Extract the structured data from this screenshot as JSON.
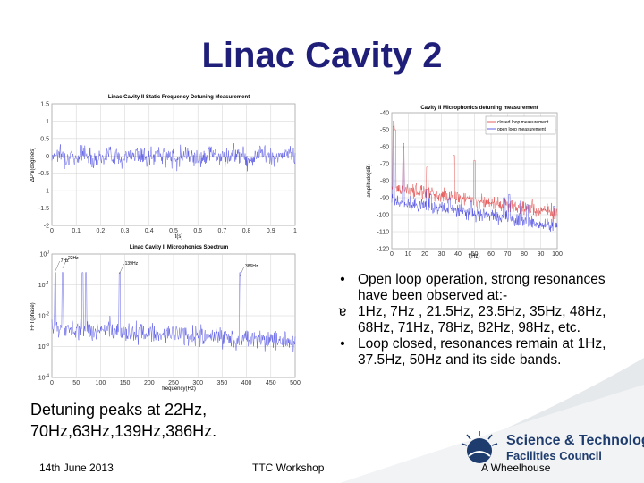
{
  "slide": {
    "title": "Linac Cavity 2",
    "bullets": [
      {
        "marker": "•",
        "text": "Open loop operation, strong resonances have been observed at:-"
      },
      {
        "marker": "ɐ",
        "text": "1Hz, 7Hz , 21.5Hz, 23.5Hz, 35Hz, 48Hz, 68Hz, 71Hz, 78Hz, 82Hz, 98Hz, etc."
      },
      {
        "marker": "•",
        "text": "Loop closed, resonances remain at 1Hz, 37.5Hz, 50Hz and its side bands."
      }
    ],
    "detuning_note": "Detuning peaks at 22Hz, 70Hz,63Hz,139Hz,386Hz.",
    "footer": {
      "date": "14th June 2013",
      "event": "TTC Workshop",
      "author": "A Wheelhouse"
    },
    "logo": {
      "line1": "Science & Technology",
      "line2": "Facilities Council"
    }
  },
  "colors": {
    "title": "#1f1f7a",
    "blue_trace": "#3a3ae0",
    "red_trace": "#e03a3a",
    "swoosh": "#d8dde2"
  },
  "chart_data": [
    {
      "type": "line",
      "title": "Linac Cavity II Static Frequency Detuning Measurement",
      "xlabel": "t(s)",
      "ylabel": "ΔPhi(degrees)",
      "xlim": [
        0,
        1
      ],
      "ylim": [
        -2,
        1.5
      ],
      "xticks": [
        "0",
        "0.1",
        "0.2",
        "0.3",
        "0.4",
        "0.5",
        "0.6",
        "0.7",
        "0.8",
        "0.9",
        "1"
      ],
      "yticks": [
        "1.5",
        "1",
        "0.5",
        "0",
        "-0.5",
        "-1",
        "-1.5",
        "-2"
      ],
      "series": [
        {
          "description": "noisy signal around 0, amplitude about ±0.6"
        }
      ]
    },
    {
      "type": "line",
      "title": "Linac Cavity II Microphonics Spectrum",
      "xlabel": "frequency(Hz)",
      "ylabel": "FFT(phase)",
      "xlim": [
        0,
        500
      ],
      "ylog": true,
      "xticks": [
        "0",
        "50",
        "100",
        "150",
        "200",
        "250",
        "300",
        "350",
        "400",
        "450",
        "500"
      ],
      "yticks": [
        "10^0",
        "10^-1",
        "10^-2",
        "10^-3",
        "10^-4"
      ],
      "annotations": [
        "22Hz",
        "7Hz",
        "139Hz",
        "386Hz"
      ]
    },
    {
      "type": "line",
      "title": "Cavity II Microphonics detuning measurement",
      "xlabel": "f(Hz)",
      "ylabel": "amplitude(dB)",
      "xlim": [
        0,
        100
      ],
      "ylim": [
        -120,
        -40
      ],
      "xticks": [
        "0",
        "10",
        "20",
        "30",
        "40",
        "50",
        "60",
        "70",
        "80",
        "90",
        "100"
      ],
      "yticks": [
        "-40",
        "-50",
        "-60",
        "-70",
        "-80",
        "-90",
        "-100",
        "-110",
        "-120"
      ],
      "series": [
        {
          "name": "closed loop measurement"
        },
        {
          "name": "open loop measurement"
        }
      ]
    }
  ]
}
